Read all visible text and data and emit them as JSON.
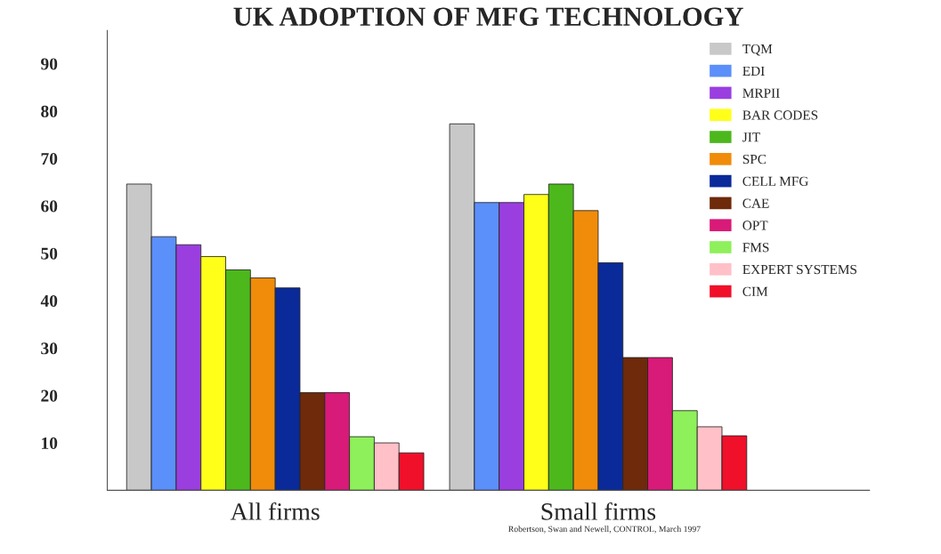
{
  "chart_data": {
    "type": "bar",
    "title": "UK ADOPTION OF MFG TECHNOLOGY",
    "categories": [
      "All firms",
      "Small firms"
    ],
    "series": [
      {
        "name": "TQM",
        "color": "#c8c8c8",
        "values": [
          64.6,
          77.3
        ]
      },
      {
        "name": "EDI",
        "color": "#5b8ff9",
        "values": [
          53.5,
          60.7
        ]
      },
      {
        "name": "MRPII",
        "color": "#9a3ee0",
        "values": [
          51.8,
          60.7
        ]
      },
      {
        "name": "BAR CODES",
        "color": "#ffff1a",
        "values": [
          49.3,
          62.4
        ]
      },
      {
        "name": "JIT",
        "color": "#4cb81c",
        "values": [
          46.5,
          64.6
        ]
      },
      {
        "name": "SPC",
        "color": "#f08c0a",
        "values": [
          44.8,
          59
        ]
      },
      {
        "name": "CELL MFG",
        "color": "#0a2a9a",
        "values": [
          42.7,
          48
        ]
      },
      {
        "name": "CAE",
        "color": "#6e2a0a",
        "values": [
          20.6,
          28
        ]
      },
      {
        "name": "OPT",
        "color": "#d81a78",
        "values": [
          20.6,
          28
        ]
      },
      {
        "name": "FMS",
        "color": "#8ef05a",
        "values": [
          11.3,
          16.8
        ]
      },
      {
        "name": "EXPERT SYSTEMS",
        "color": "#ffc0c8",
        "values": [
          10,
          13.4
        ]
      },
      {
        "name": "CIM",
        "color": "#f0102a",
        "values": [
          7.9,
          11.5
        ]
      }
    ],
    "ylim": [
      0,
      97
    ],
    "yticks": [
      10,
      20,
      30,
      40,
      50,
      60,
      70,
      80,
      90
    ],
    "legend": "top right",
    "grid": false,
    "annotations": [
      "Robertson, Swan and Newell, CONTROL, March 1997"
    ]
  }
}
